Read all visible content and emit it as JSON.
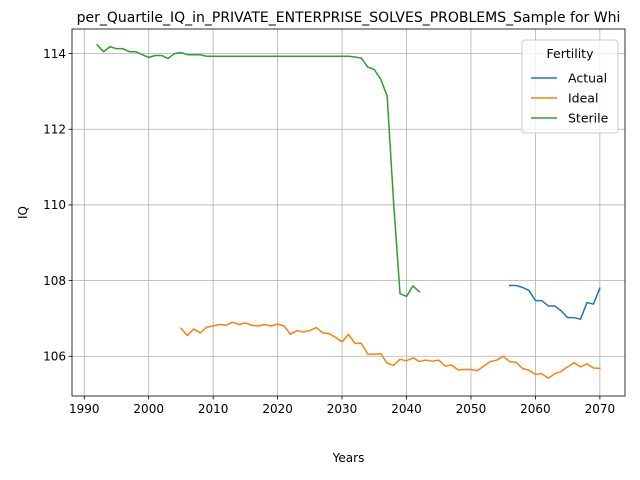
{
  "chart_data": {
    "type": "line",
    "title": "per_Quartile_IQ_in_PRIVATE_ENTERPRISE_SOLVES_PROBLEMS_Sample for Whi",
    "xlabel": "Years",
    "ylabel": "IQ",
    "xlim": [
      1988.1,
      2073.9
    ],
    "ylim": [
      104.95,
      114.65
    ],
    "xticks": [
      1990,
      2000,
      2010,
      2020,
      2030,
      2040,
      2050,
      2060,
      2070
    ],
    "yticks": [
      106,
      108,
      110,
      112,
      114
    ],
    "grid": true,
    "legend": {
      "title": "Fertility",
      "placement": "top-right",
      "entries": [
        "Actual",
        "Ideal",
        "Sterile"
      ]
    },
    "series": [
      {
        "name": "Actual",
        "color": "#1f77b4",
        "x": [
          2056,
          2057,
          2058,
          2059,
          2060,
          2061,
          2062,
          2063,
          2064,
          2065,
          2066,
          2067,
          2068,
          2069,
          2070
        ],
        "y": [
          107.87,
          107.87,
          107.82,
          107.74,
          107.47,
          107.47,
          107.33,
          107.33,
          107.2,
          107.02,
          107.02,
          106.98,
          107.42,
          107.38,
          107.8
        ]
      },
      {
        "name": "Ideal",
        "color": "#ff7f0e",
        "x": [
          2005,
          2006,
          2007,
          2008,
          2009,
          2010,
          2011,
          2012,
          2013,
          2014,
          2015,
          2016,
          2017,
          2018,
          2019,
          2020,
          2021,
          2022,
          2023,
          2024,
          2025,
          2026,
          2027,
          2028,
          2029,
          2030,
          2031,
          2032,
          2033,
          2034,
          2035,
          2036,
          2037,
          2038,
          2039,
          2040,
          2041,
          2042,
          2043,
          2044,
          2045,
          2046,
          2047,
          2048,
          2049,
          2050,
          2051,
          2052,
          2053,
          2054,
          2055,
          2056,
          2057,
          2058,
          2059,
          2060,
          2061,
          2062,
          2063,
          2064,
          2065,
          2066,
          2067,
          2068,
          2069,
          2070
        ],
        "y": [
          106.74,
          106.55,
          106.72,
          106.62,
          106.77,
          106.8,
          106.84,
          106.82,
          106.9,
          106.84,
          106.88,
          106.82,
          106.8,
          106.84,
          106.8,
          106.85,
          106.8,
          106.58,
          106.68,
          106.64,
          106.68,
          106.76,
          106.62,
          106.6,
          106.5,
          106.38,
          106.58,
          106.34,
          106.34,
          106.06,
          106.05,
          106.07,
          105.82,
          105.76,
          105.92,
          105.88,
          105.96,
          105.86,
          105.9,
          105.87,
          105.9,
          105.74,
          105.77,
          105.64,
          105.65,
          105.65,
          105.62,
          105.74,
          105.86,
          105.9,
          106.0,
          105.86,
          105.84,
          105.68,
          105.63,
          105.52,
          105.54,
          105.42,
          105.54,
          105.6,
          105.72,
          105.83,
          105.72,
          105.8,
          105.69,
          105.68
        ]
      },
      {
        "name": "Sterile",
        "color": "#2ca02c",
        "x": [
          1992,
          1993,
          1994,
          1995,
          1996,
          1997,
          1998,
          1999,
          2000,
          2001,
          2002,
          2003,
          2004,
          2005,
          2006,
          2007,
          2008,
          2009,
          2010,
          2015,
          2020,
          2025,
          2030,
          2031,
          2032,
          2033,
          2034,
          2035,
          2036,
          2037,
          2038,
          2039,
          2040,
          2041,
          2042
        ],
        "y": [
          114.23,
          114.05,
          114.18,
          114.13,
          114.13,
          114.05,
          114.05,
          113.97,
          113.9,
          113.95,
          113.95,
          113.87,
          114.0,
          114.03,
          113.97,
          113.97,
          113.97,
          113.93,
          113.93,
          113.93,
          113.93,
          113.93,
          113.93,
          113.93,
          113.91,
          113.88,
          113.64,
          113.58,
          113.32,
          112.88,
          110.05,
          107.65,
          107.58,
          107.86,
          107.7
        ]
      }
    ]
  }
}
